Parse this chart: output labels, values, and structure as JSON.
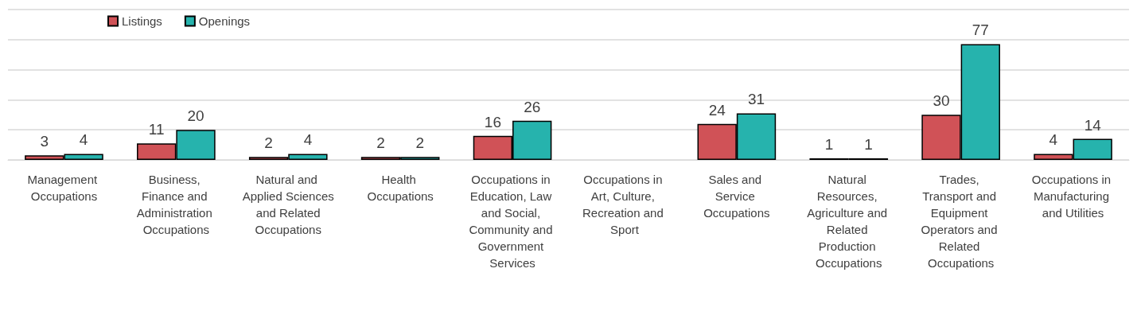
{
  "chart_data": {
    "type": "bar",
    "categories": [
      "Management Occupations",
      "Business, Finance and Administration Occupations",
      "Natural and Applied Sciences and Related Occupations",
      "Health Occupations",
      "Occupations in Education, Law and Social, Community and Government Services",
      "Occupations in Art, Culture, Recreation and Sport",
      "Sales and Service Occupations",
      "Natural Resources, Agriculture and Related Production Occupations",
      "Trades, Transport and Equipment Operators and Related Occupations",
      "Occupations in Manufacturing and Utilities"
    ],
    "series": [
      {
        "name": "Listings",
        "color": "#d05257",
        "values": [
          3,
          11,
          2,
          2,
          16,
          null,
          24,
          1,
          30,
          4
        ]
      },
      {
        "name": "Openings",
        "color": "#26b3ad",
        "values": [
          4,
          20,
          4,
          2,
          26,
          null,
          31,
          1,
          77,
          14
        ]
      }
    ],
    "ylim": [
      0,
      100
    ],
    "yticks": [
      {
        "value": 0,
        "label": null
      },
      {
        "value": 20,
        "label": null
      },
      {
        "value": 40,
        "label": null
      },
      {
        "value": 60,
        "label": null
      },
      {
        "value": 80,
        "label": null
      },
      {
        "value": 100,
        "label": null
      }
    ],
    "tick_labels": "x",
    "grid": "y",
    "legend": "top left",
    "data_labels": true
  }
}
